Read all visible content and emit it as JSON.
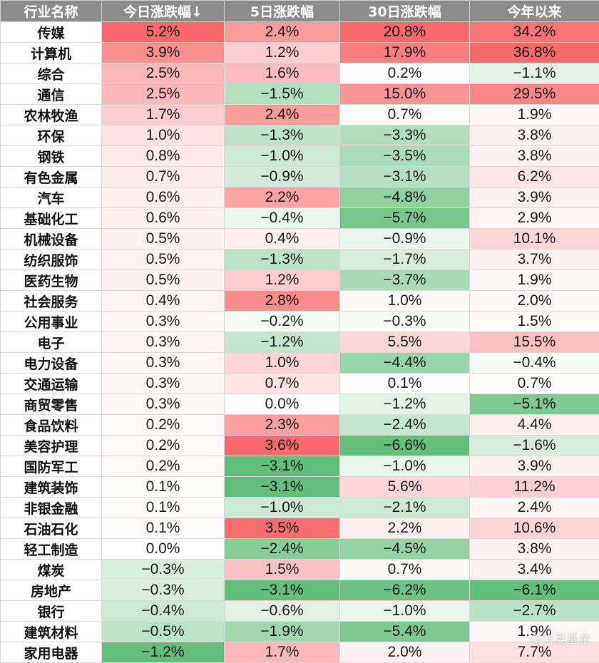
{
  "table": {
    "headers": [
      "行业名称",
      "今日涨跌幅↓",
      "5日涨跌幅",
      "30日涨跌幅",
      "今年以来"
    ],
    "rows": [
      [
        "传媒",
        "5.2%",
        "2.4%",
        "20.8%",
        "34.2%"
      ],
      [
        "计算机",
        "3.9%",
        "1.2%",
        "17.9%",
        "36.8%"
      ],
      [
        "综合",
        "2.5%",
        "1.6%",
        "0.2%",
        "−1.1%"
      ],
      [
        "通信",
        "2.5%",
        "−1.5%",
        "15.0%",
        "29.5%"
      ],
      [
        "农林牧渔",
        "1.7%",
        "2.4%",
        "0.7%",
        "1.9%"
      ],
      [
        "环保",
        "1.0%",
        "−1.3%",
        "−3.3%",
        "3.8%"
      ],
      [
        "钢铁",
        "0.8%",
        "−1.0%",
        "−3.5%",
        "3.8%"
      ],
      [
        "有色金属",
        "0.7%",
        "−0.9%",
        "−3.1%",
        "6.2%"
      ],
      [
        "汽车",
        "0.6%",
        "2.2%",
        "−4.8%",
        "3.9%"
      ],
      [
        "基础化工",
        "0.6%",
        "−0.4%",
        "−5.7%",
        "2.9%"
      ],
      [
        "机械设备",
        "0.5%",
        "0.4%",
        "−0.9%",
        "10.1%"
      ],
      [
        "纺织服饰",
        "0.5%",
        "−1.3%",
        "−1.7%",
        "3.7%"
      ],
      [
        "医药生物",
        "0.5%",
        "1.2%",
        "−3.7%",
        "1.9%"
      ],
      [
        "社会服务",
        "0.4%",
        "2.8%",
        "1.0%",
        "2.0%"
      ],
      [
        "公用事业",
        "0.3%",
        "−0.2%",
        "−0.3%",
        "1.5%"
      ],
      [
        "电子",
        "0.3%",
        "−1.2%",
        "5.5%",
        "15.5%"
      ],
      [
        "电力设备",
        "0.3%",
        "1.0%",
        "−4.4%",
        "−0.4%"
      ],
      [
        "交通运输",
        "0.3%",
        "0.7%",
        "0.1%",
        "0.7%"
      ],
      [
        "商贸零售",
        "0.3%",
        "0.0%",
        "−1.2%",
        "−5.1%"
      ],
      [
        "食品饮料",
        "0.2%",
        "2.3%",
        "−2.4%",
        "4.4%"
      ],
      [
        "美容护理",
        "0.2%",
        "3.6%",
        "−6.6%",
        "−1.6%"
      ],
      [
        "国防军工",
        "0.2%",
        "−3.1%",
        "−1.0%",
        "3.9%"
      ],
      [
        "建筑装饰",
        "0.1%",
        "−3.1%",
        "5.6%",
        "11.2%"
      ],
      [
        "非银金融",
        "0.1%",
        "−1.0%",
        "−2.1%",
        "2.4%"
      ],
      [
        "石油石化",
        "0.1%",
        "3.5%",
        "2.2%",
        "10.6%"
      ],
      [
        "轻工制造",
        "0.0%",
        "−2.4%",
        "−4.5%",
        "3.8%"
      ],
      [
        "煤炭",
        "−0.3%",
        "1.5%",
        "0.7%",
        "3.4%"
      ],
      [
        "房地产",
        "−0.3%",
        "−3.1%",
        "−6.2%",
        "−6.1%"
      ],
      [
        "银行",
        "−0.4%",
        "−0.6%",
        "−1.0%",
        "−2.7%"
      ],
      [
        "建筑材料",
        "−0.5%",
        "−1.9%",
        "−5.4%",
        "1.9%"
      ],
      [
        "家用电器",
        "−1.2%",
        "1.7%",
        "2.0%",
        "7.7%"
      ]
    ]
  },
  "colors": {
    "header_bg": "#8c8c8c",
    "positive": "#f8696b",
    "negative": "#63be7b",
    "neutral": "#ffffff"
  },
  "watermark": "@华夏基金"
}
